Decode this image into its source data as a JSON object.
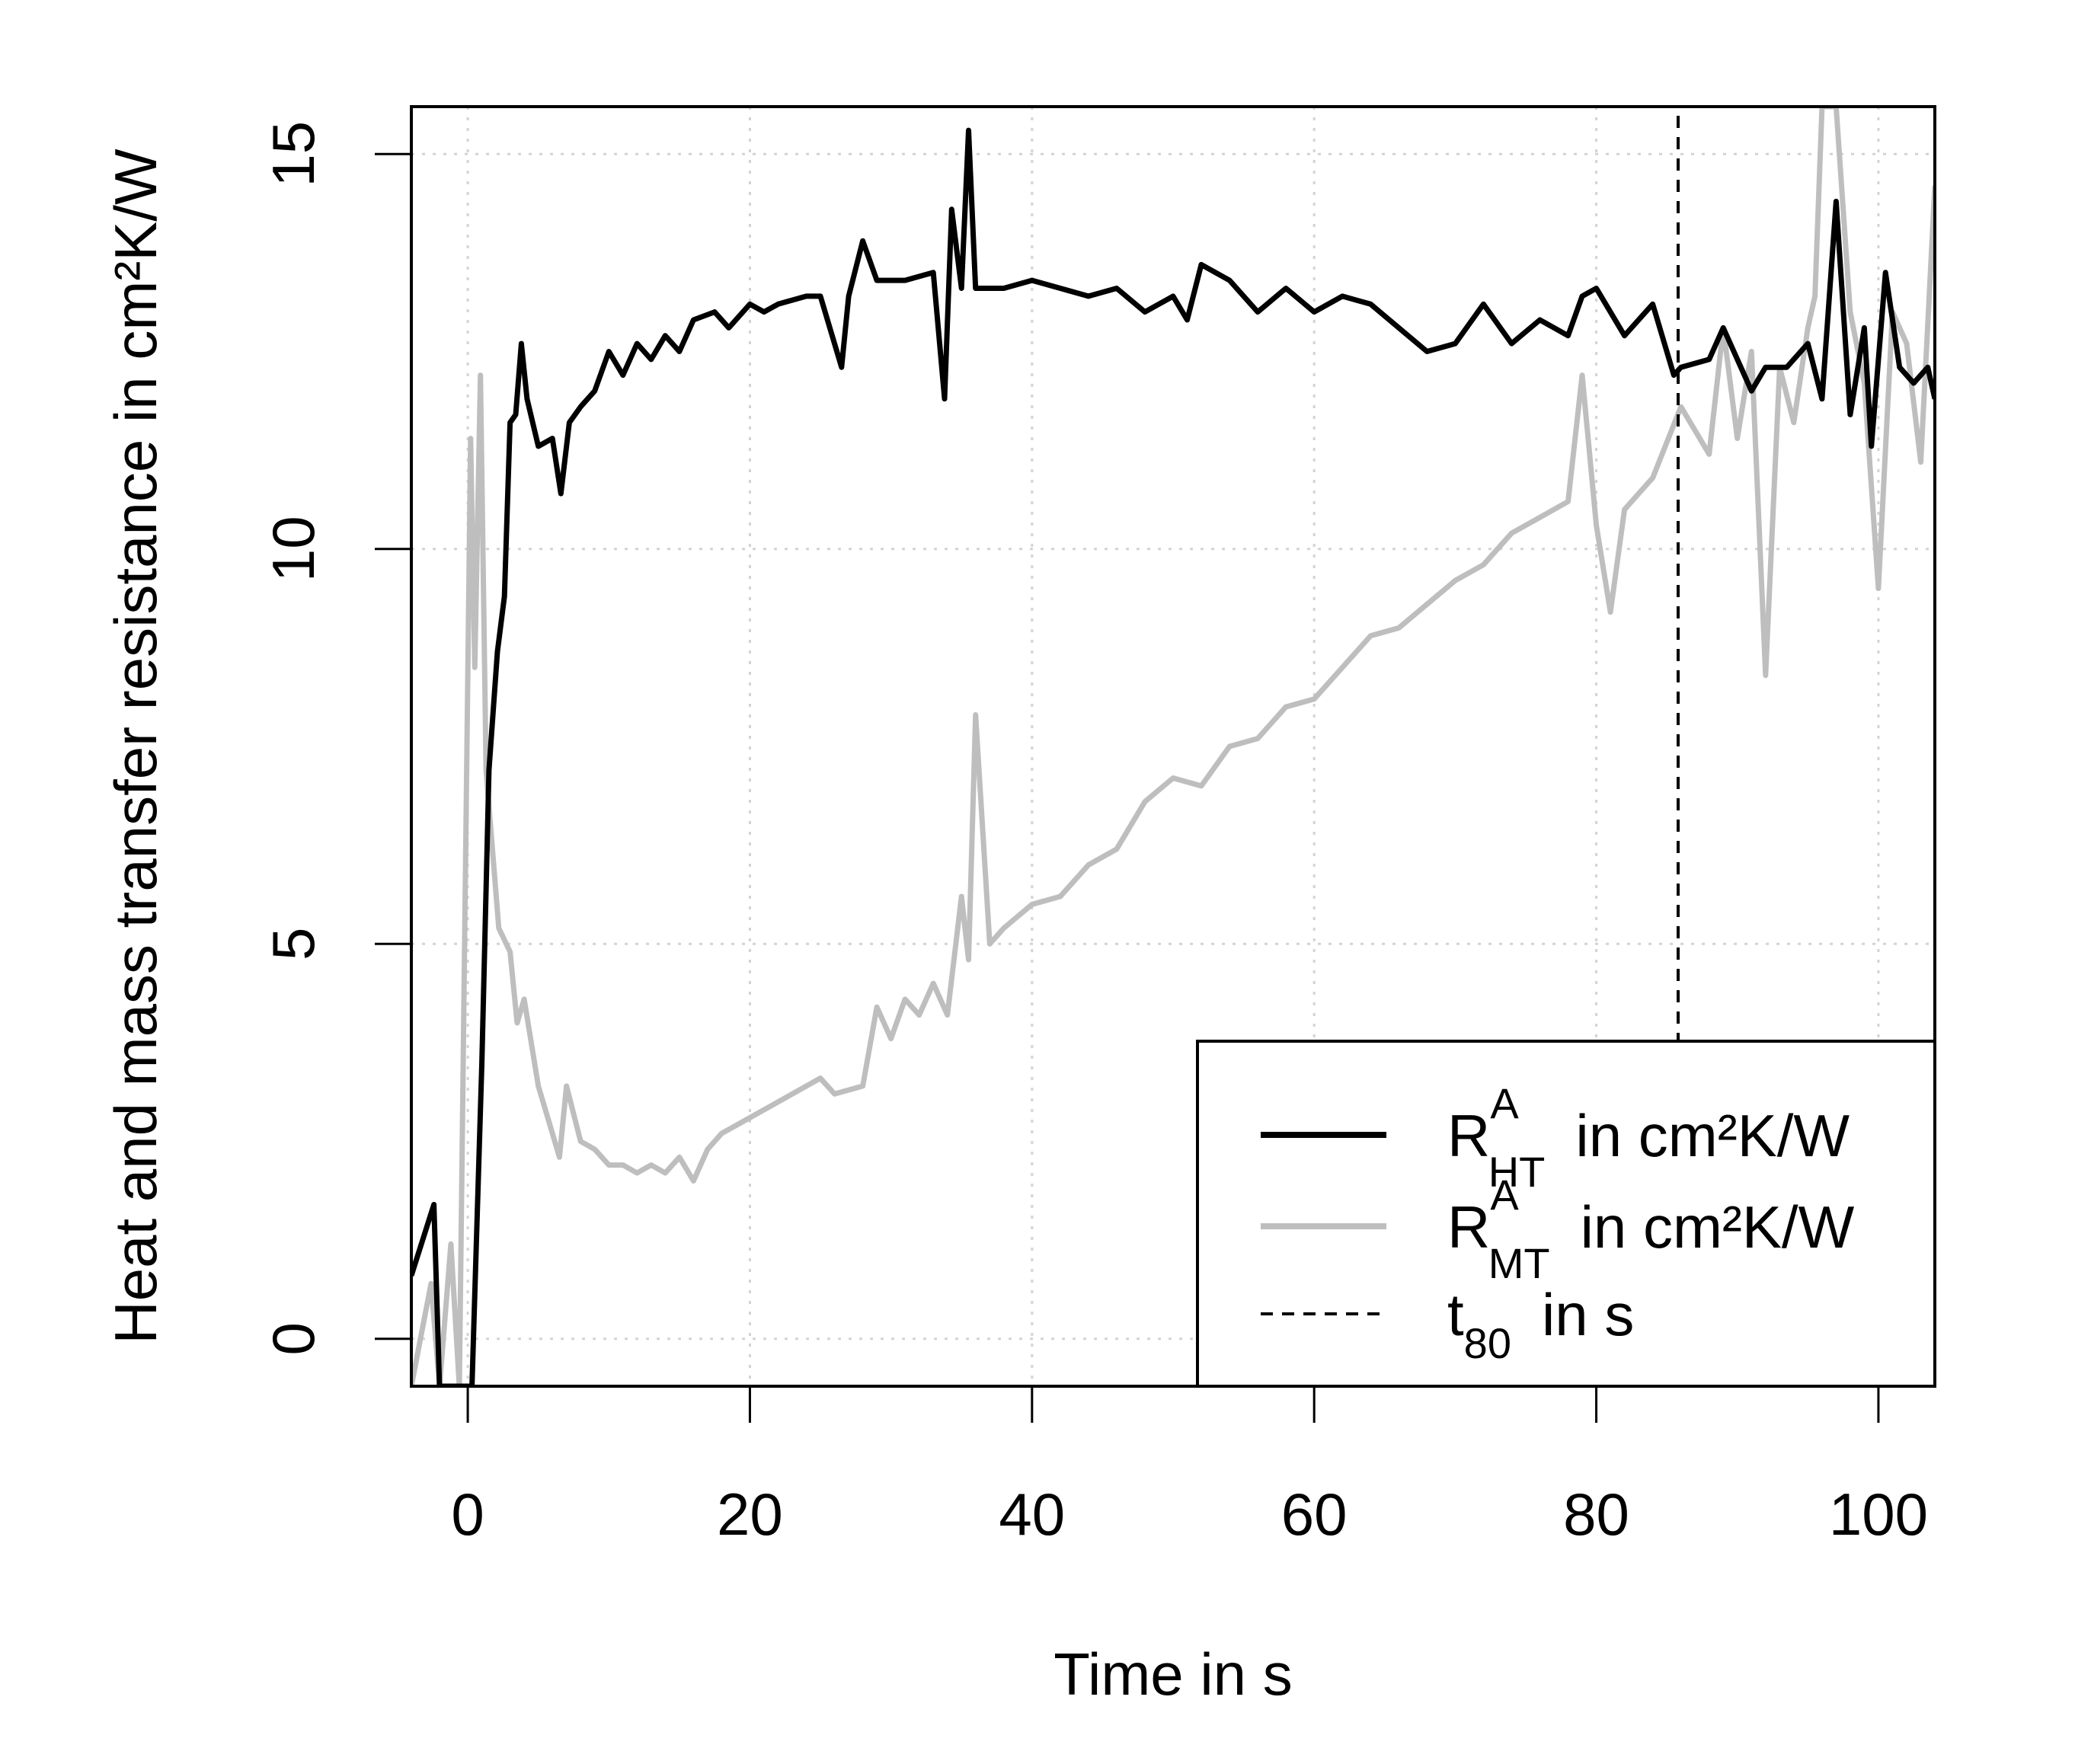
{
  "chart_data": {
    "type": "line",
    "title": "",
    "xlabel": "Time in s",
    "ylabel": "Heat and mass transfer resistance in cm²K/W",
    "xlim": [
      -4,
      104
    ],
    "ylim": [
      -0.6,
      15.6
    ],
    "x_ticks": [
      "0",
      "20",
      "40",
      "60",
      "80",
      "100"
    ],
    "y_ticks": [
      "0",
      "5",
      "10",
      "15"
    ],
    "grid": true,
    "legend_position": "bottom-right",
    "series": [
      {
        "name": "R_HT^A in cm²K/W",
        "label_main": "R",
        "label_sup": "A",
        "label_sub": "HT",
        "label_tail": "in cm²K/W",
        "color": "#000000",
        "style": "solid",
        "x": [
          -4,
          -2.4,
          -2.0,
          -1.2,
          0.3,
          1.0,
          1.5,
          2.1,
          2.6,
          3.0,
          3.4,
          3.8,
          4.2,
          5.0,
          6.0,
          6.6,
          7.2,
          8.0,
          9.0,
          10.0,
          11.0,
          12.0,
          13.0,
          14.0,
          15.0,
          16.0,
          17.5,
          18.5,
          20.0,
          21.0,
          22.0,
          24.0,
          25.0,
          26.5,
          27.0,
          28.0,
          29.0,
          31.0,
          33.0,
          33.8,
          34.3,
          35.0,
          35.5,
          36.0,
          37.0,
          38.0,
          40.0,
          42.0,
          44.0,
          46.0,
          48.0,
          50.0,
          51.0,
          52.0,
          54.0,
          56.0,
          58.0,
          60.0,
          62.0,
          64.0,
          66.0,
          68.0,
          70.0,
          72.0,
          74.0,
          76.0,
          78.0,
          79.0,
          80.0,
          82.0,
          84.0,
          85.5,
          86.0,
          88.0,
          89.0,
          91.0,
          92.0,
          93.5,
          95.0,
          96.0,
          97.0,
          98.0,
          99.0,
          99.5,
          100.5,
          101.5,
          102.5,
          103.5,
          104.0
        ],
        "values": [
          0.8,
          1.7,
          -0.6,
          -0.6,
          -0.6,
          3.5,
          7.2,
          8.7,
          9.4,
          11.6,
          11.7,
          12.6,
          11.9,
          11.3,
          11.4,
          10.7,
          11.6,
          11.8,
          12.0,
          12.5,
          12.2,
          12.6,
          12.4,
          12.7,
          12.5,
          12.9,
          13.0,
          12.8,
          13.1,
          13.0,
          13.1,
          13.2,
          13.2,
          12.3,
          13.2,
          13.9,
          13.4,
          13.4,
          13.5,
          11.9,
          14.3,
          13.3,
          15.3,
          13.3,
          13.3,
          13.3,
          13.4,
          13.3,
          13.2,
          13.3,
          13.0,
          13.2,
          12.9,
          13.6,
          13.4,
          13.0,
          13.3,
          13.0,
          13.2,
          13.1,
          12.8,
          12.5,
          12.6,
          13.1,
          12.6,
          12.9,
          12.7,
          13.2,
          13.3,
          12.7,
          13.1,
          12.2,
          12.3,
          12.4,
          12.8,
          12.0,
          12.3,
          12.3,
          12.6,
          11.9,
          14.4,
          11.7,
          12.8,
          11.3,
          13.5,
          12.3,
          12.1,
          12.3,
          11.9
        ]
      },
      {
        "name": "R_MT^A in cm²K/W",
        "label_main": "R",
        "label_sup": "A",
        "label_sub": "MT",
        "label_tail": "in cm²K/W",
        "color": "#bebebe",
        "style": "solid",
        "x": [
          -4,
          -2.6,
          -2.0,
          -1.2,
          -0.6,
          0.2,
          0.5,
          0.9,
          1.3,
          1.7,
          2.2,
          3.0,
          3.5,
          4.0,
          5.0,
          6.0,
          6.5,
          7.0,
          8.0,
          9.0,
          10.0,
          11.0,
          12.0,
          13.0,
          14.0,
          15.0,
          16.0,
          17.0,
          18.0,
          19.0,
          20.0,
          22.0,
          24.0,
          25.0,
          26.0,
          28.0,
          29.0,
          30.0,
          31.0,
          32.0,
          33.0,
          34.0,
          35.0,
          35.5,
          36.0,
          37.0,
          38.0,
          40.0,
          42.0,
          44.0,
          46.0,
          48.0,
          50.0,
          52.0,
          54.0,
          56.0,
          58.0,
          60.0,
          62.0,
          64.0,
          66.0,
          68.0,
          70.0,
          72.0,
          74.0,
          76.0,
          78.0,
          79.0,
          80.0,
          81.0,
          82.0,
          84.0,
          86.0,
          88.0,
          89.0,
          90.0,
          91.0,
          92.0,
          93.0,
          94.0,
          95.0,
          95.5,
          96.0,
          97.0,
          98.0,
          99.0,
          100.0,
          101.0,
          102.0,
          103.0,
          104.0
        ],
        "values": [
          -0.6,
          0.7,
          -0.6,
          1.2,
          -0.6,
          11.4,
          8.5,
          12.2,
          7.2,
          6.3,
          5.2,
          4.9,
          4.0,
          4.3,
          3.2,
          2.6,
          2.3,
          3.2,
          2.5,
          2.4,
          2.2,
          2.2,
          2.1,
          2.2,
          2.1,
          2.3,
          2.0,
          2.4,
          2.6,
          2.7,
          2.8,
          3.0,
          3.2,
          3.3,
          3.1,
          3.2,
          4.2,
          3.8,
          4.3,
          4.1,
          4.5,
          4.1,
          5.6,
          4.8,
          7.9,
          5.0,
          5.2,
          5.5,
          5.6,
          6.0,
          6.2,
          6.8,
          7.1,
          7.0,
          7.5,
          7.6,
          8.0,
          8.1,
          8.5,
          8.9,
          9.0,
          9.3,
          9.6,
          9.8,
          10.2,
          10.4,
          10.6,
          12.2,
          10.3,
          9.2,
          10.5,
          10.9,
          11.8,
          11.2,
          12.8,
          11.4,
          12.5,
          8.4,
          12.3,
          11.6,
          12.8,
          13.2,
          15.6,
          15.6,
          13.0,
          12.1,
          9.5,
          13.0,
          12.6,
          11.1,
          14.6
        ]
      },
      {
        "name": "t_80 in s",
        "label_main": "t",
        "label_sup": "",
        "label_sub": "80",
        "label_tail": "in s",
        "color": "#000000",
        "style": "dashed",
        "x": [
          85.8,
          85.8
        ],
        "values": [
          -0.6,
          15.6
        ]
      }
    ]
  }
}
